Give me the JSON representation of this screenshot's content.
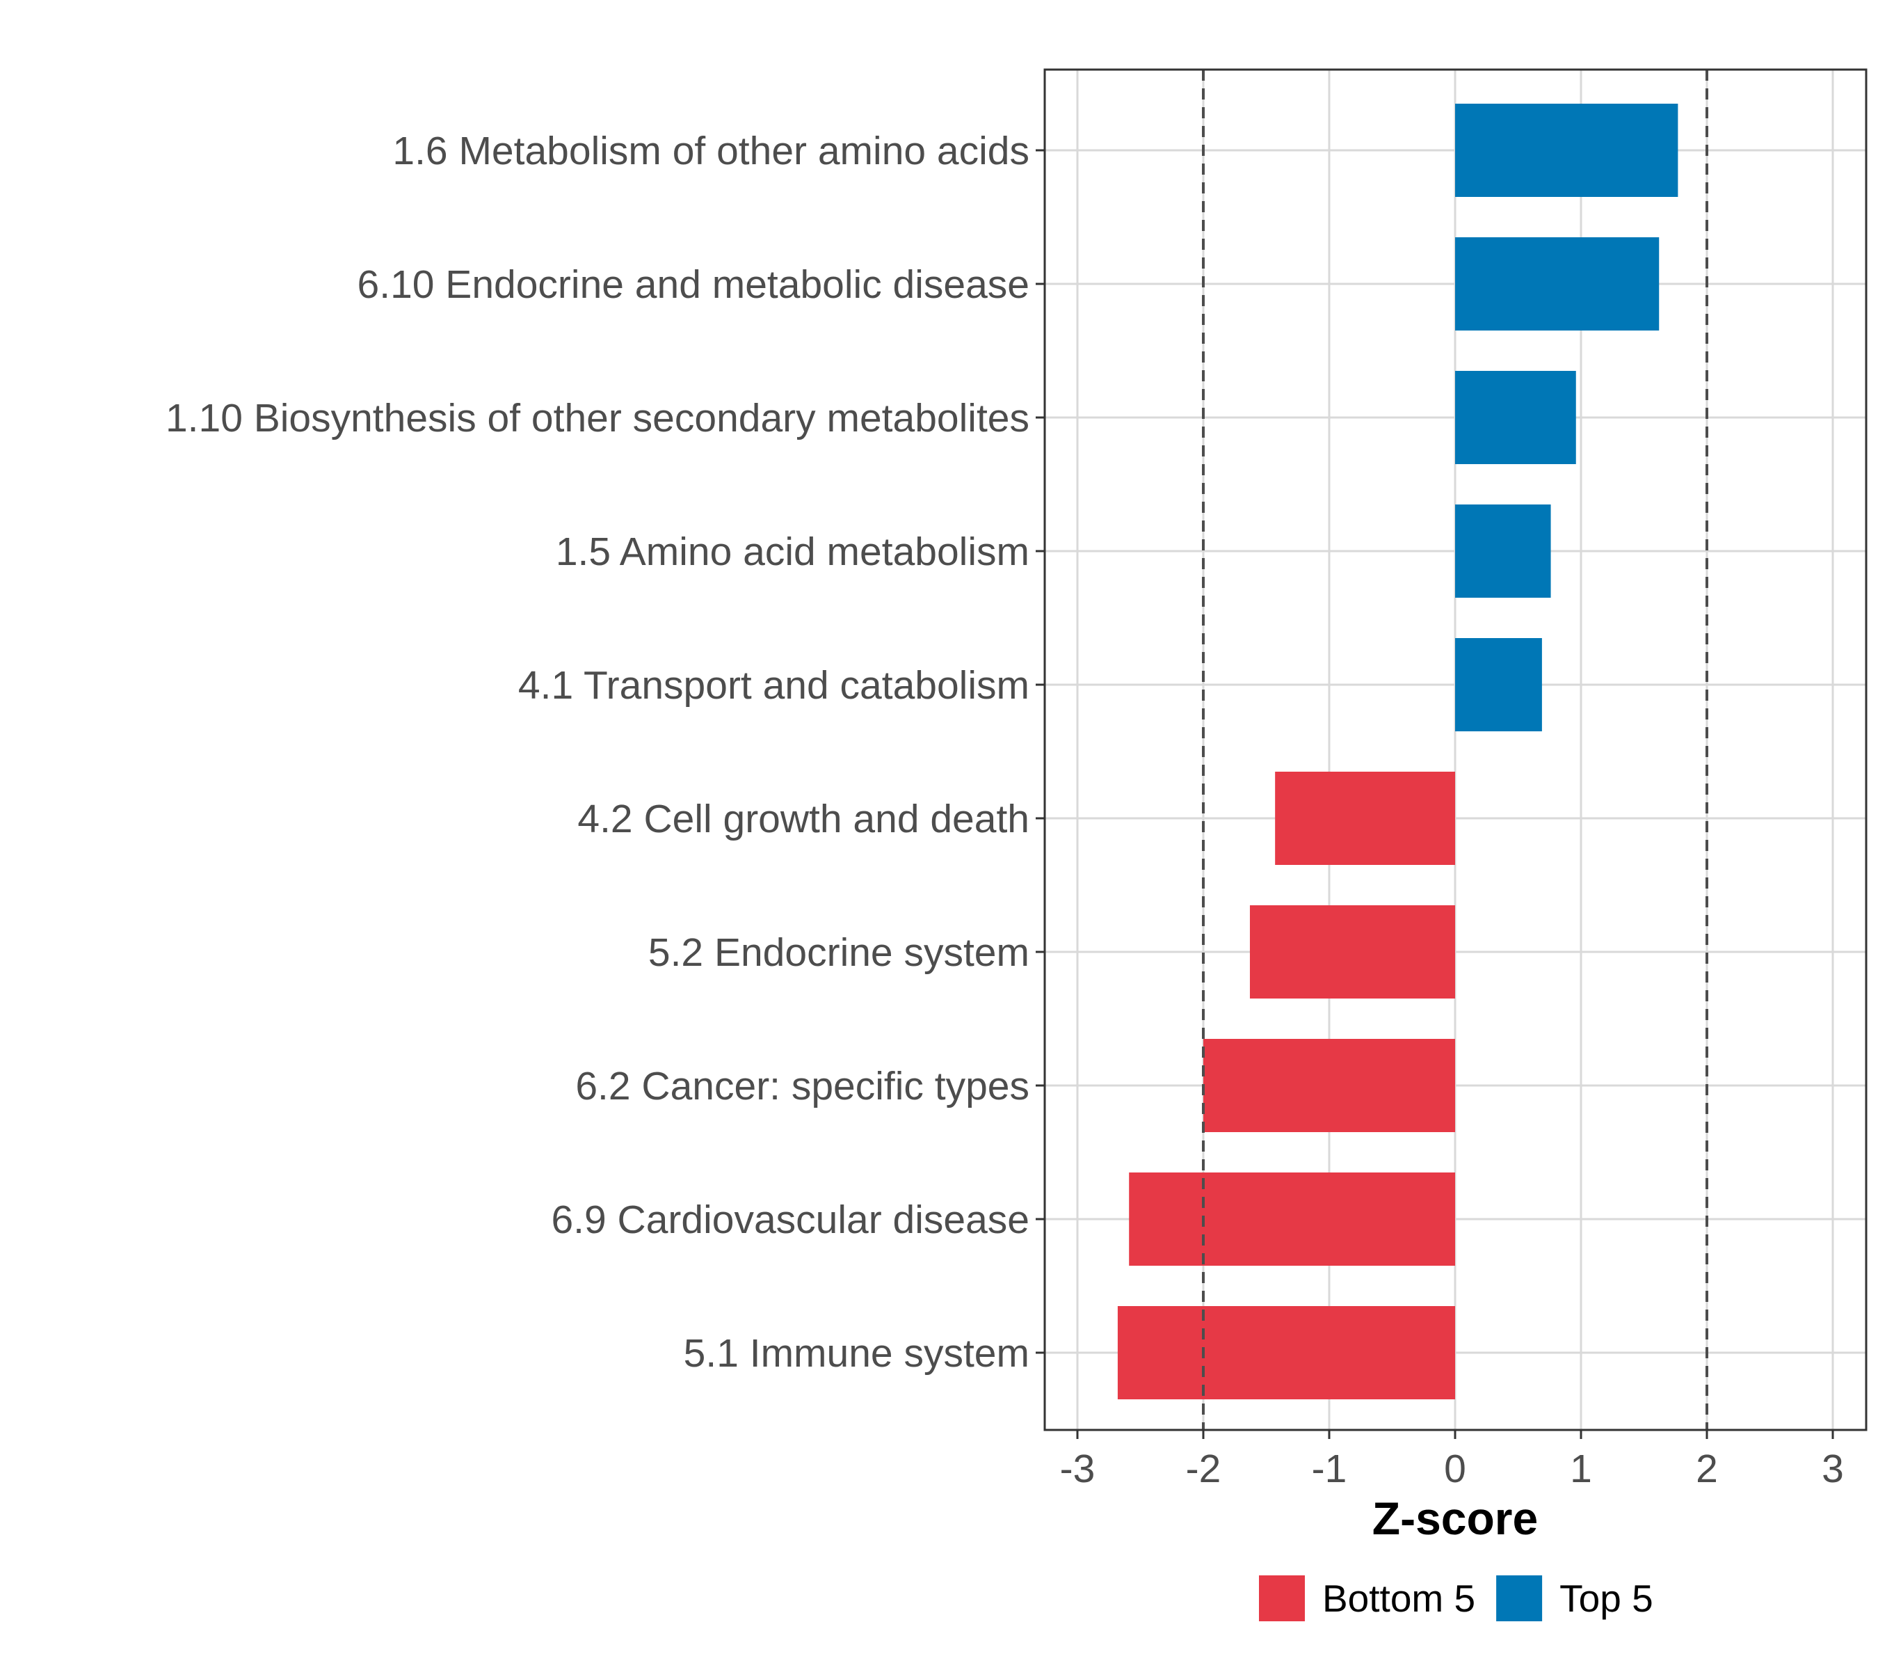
{
  "chart_data": {
    "type": "bar",
    "orientation": "horizontal",
    "title": "",
    "xlabel": "Z-score",
    "ylabel": "",
    "xlim": [
      -3.3,
      3.3
    ],
    "xticks": [
      -3,
      -2,
      -1,
      0,
      1,
      2,
      3
    ],
    "xtick_labels": [
      "-3",
      "-2",
      "-1",
      "0",
      "1",
      "2",
      "3"
    ],
    "reference_lines": [
      -2,
      2
    ],
    "grid": true,
    "categories": [
      "1.6 Metabolism of other amino acids",
      "6.10 Endocrine and metabolic disease",
      "1.10 Biosynthesis of other secondary metabolites",
      "1.5 Amino acid metabolism",
      "4.1 Transport and catabolism",
      "4.2 Cell growth and death",
      "5.2 Endocrine system",
      "6.2 Cancer: specific types",
      "6.9 Cardiovascular disease",
      "5.1 Immune system"
    ],
    "values": [
      1.77,
      1.62,
      0.96,
      0.76,
      0.69,
      -1.43,
      -1.63,
      -2.0,
      -2.59,
      -2.68
    ],
    "groups": [
      "Top 5",
      "Top 5",
      "Top 5",
      "Top 5",
      "Top 5",
      "Bottom 5",
      "Bottom 5",
      "Bottom 5",
      "Bottom 5",
      "Bottom 5"
    ],
    "legend": {
      "position": "bottom",
      "items": [
        {
          "label": "Bottom 5",
          "color": "#e63946"
        },
        {
          "label": "Top 5",
          "color": "#0077b6"
        }
      ]
    },
    "colors": {
      "Top 5": "#0077b6",
      "Bottom 5": "#e63946",
      "grid": "#d9d9d9",
      "reference_line": "#4d4d4d",
      "panel_border": "#333333"
    }
  }
}
